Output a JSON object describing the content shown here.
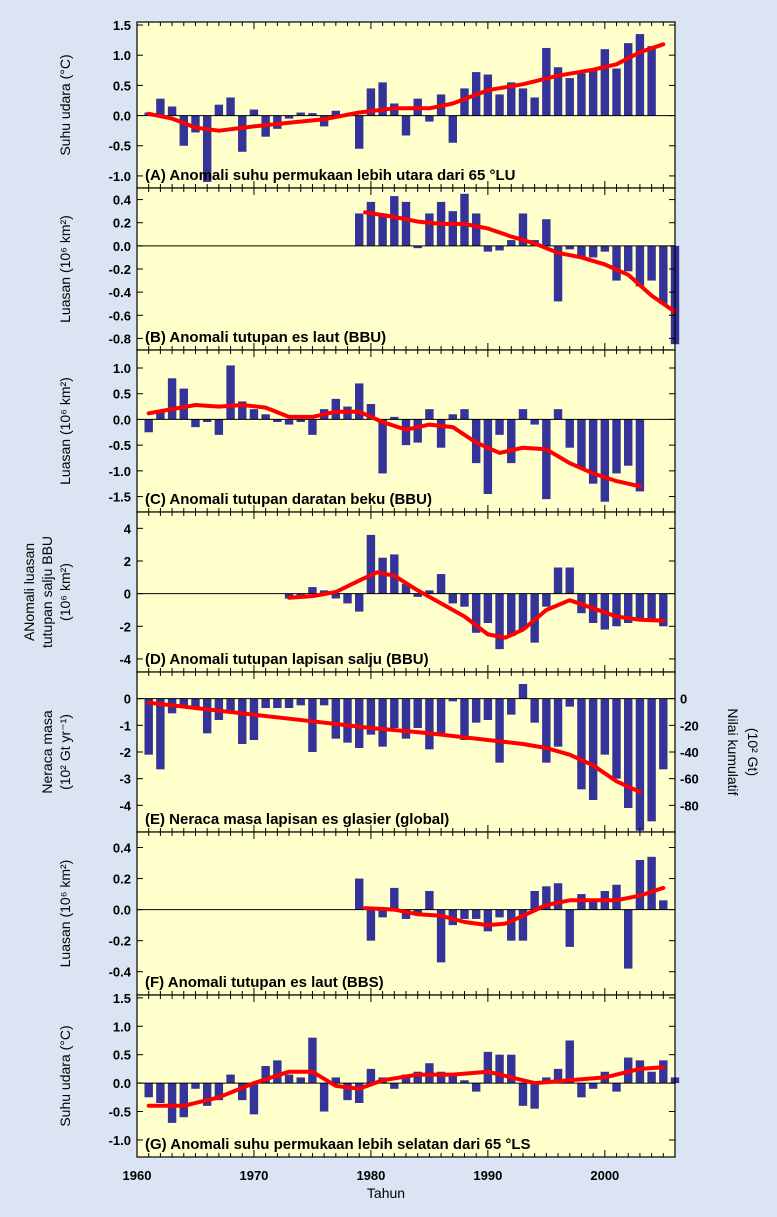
{
  "figure": {
    "xlabel": "Tahun",
    "xticks": [
      1960,
      1970,
      1980,
      1990,
      2000
    ],
    "xlim": [
      1960,
      2006
    ]
  },
  "chart_data": [
    {
      "type": "bar",
      "title": "(A) Anomali suhu permukaan lebih utara dari 65 °LU",
      "ylabel": [
        "Suhu udara (°C)"
      ],
      "ylim": [
        -1.2,
        1.55
      ],
      "yticks": [
        1.5,
        1.0,
        0.5,
        0.0,
        -0.5,
        -1.0
      ],
      "ytick_labels": [
        "1.5",
        "1.0",
        "0.5",
        "0.0",
        "-0.5",
        "-1.0"
      ],
      "x_start": 1961,
      "values": [
        0.05,
        0.28,
        0.15,
        -0.5,
        -0.28,
        -1.1,
        0.18,
        0.3,
        -0.6,
        0.1,
        -0.35,
        -0.22,
        -0.05,
        0.05,
        0.04,
        -0.18,
        0.08,
        0.02,
        -0.55,
        0.45,
        0.55,
        0.2,
        -0.33,
        0.28,
        -0.1,
        0.35,
        -0.45,
        0.45,
        0.72,
        0.68,
        0.35,
        0.55,
        0.45,
        0.3,
        1.12,
        0.8,
        0.62,
        0.7,
        0.75,
        1.1,
        0.78,
        1.2,
        1.35,
        1.15
      ],
      "smooth": [
        [
          1961,
          0.03
        ],
        [
          1963,
          -0.05
        ],
        [
          1965,
          -0.2
        ],
        [
          1967,
          -0.25
        ],
        [
          1970,
          -0.18
        ],
        [
          1973,
          -0.12
        ],
        [
          1976,
          -0.06
        ],
        [
          1979,
          0.05
        ],
        [
          1982,
          0.12
        ],
        [
          1985,
          0.12
        ],
        [
          1987,
          0.2
        ],
        [
          1990,
          0.42
        ],
        [
          1993,
          0.52
        ],
        [
          1996,
          0.66
        ],
        [
          1999,
          0.76
        ],
        [
          2001,
          0.85
        ],
        [
          2003,
          1.05
        ],
        [
          2005,
          1.18
        ]
      ],
      "series_color": "#333399",
      "smooth_color": "#ff0000"
    },
    {
      "type": "bar",
      "title": "(B) Anomali tutupan es laut (BBU)",
      "ylabel": [
        "Luasan (10⁶ km²)"
      ],
      "ylim": [
        -0.9,
        0.5
      ],
      "yticks": [
        0.4,
        0.2,
        0.0,
        -0.2,
        -0.4,
        -0.6,
        -0.8
      ],
      "ytick_labels": [
        "0.4",
        "0.2",
        "0.0",
        "-0.2",
        "-0.4",
        "-0.6",
        "-0.8"
      ],
      "x_start": 1979,
      "values": [
        0.28,
        0.38,
        0.28,
        0.43,
        0.38,
        -0.02,
        0.28,
        0.38,
        0.3,
        0.45,
        0.28,
        -0.05,
        -0.04,
        0.05,
        0.28,
        0.05,
        0.23,
        -0.48,
        -0.03,
        -0.1,
        -0.1,
        -0.05,
        -0.3,
        -0.22,
        -0.35,
        -0.3,
        -0.5,
        -0.85
      ],
      "smooth": [
        [
          1979.5,
          0.29
        ],
        [
          1982,
          0.25
        ],
        [
          1984,
          0.21
        ],
        [
          1986,
          0.19
        ],
        [
          1988,
          0.19
        ],
        [
          1990,
          0.15
        ],
        [
          1992,
          0.08
        ],
        [
          1994,
          0.02
        ],
        [
          1996,
          -0.06
        ],
        [
          1998,
          -0.1
        ],
        [
          2000,
          -0.16
        ],
        [
          2002,
          -0.25
        ],
        [
          2004,
          -0.43
        ],
        [
          2006,
          -0.57
        ]
      ],
      "series_color": "#333399",
      "smooth_color": "#ff0000"
    },
    {
      "type": "bar",
      "title": "(C) Anomali tutupan daratan beku (BBU)",
      "ylabel": [
        "Luasan (10⁶ km²)"
      ],
      "ylim": [
        -1.8,
        1.35
      ],
      "yticks": [
        1.0,
        0.5,
        0.0,
        -0.5,
        -1.0,
        -1.5
      ],
      "ytick_labels": [
        "1.0",
        "0.5",
        "0.0",
        "-0.5",
        "-1.0",
        "-1.5"
      ],
      "x_start": 1961,
      "values": [
        -0.25,
        0.15,
        0.8,
        0.6,
        -0.15,
        -0.05,
        -0.3,
        1.05,
        0.35,
        0.2,
        0.1,
        -0.05,
        -0.1,
        -0.05,
        -0.3,
        0.2,
        0.4,
        0.25,
        0.7,
        0.3,
        -1.05,
        0.05,
        -0.5,
        -0.45,
        0.2,
        -0.55,
        0.1,
        0.2,
        -0.85,
        -1.45,
        -0.3,
        -0.85,
        0.2,
        -0.1,
        -1.55,
        0.2,
        -0.55,
        -0.95,
        -1.25,
        -1.6,
        -1.05,
        -0.9,
        -1.4
      ],
      "smooth": [
        [
          1961,
          0.12
        ],
        [
          1963,
          0.2
        ],
        [
          1965,
          0.28
        ],
        [
          1967,
          0.25
        ],
        [
          1969,
          0.28
        ],
        [
          1971,
          0.23
        ],
        [
          1973,
          0.05
        ],
        [
          1975,
          0.05
        ],
        [
          1977,
          0.15
        ],
        [
          1979,
          0.15
        ],
        [
          1981,
          -0.05
        ],
        [
          1983,
          -0.2
        ],
        [
          1985,
          -0.1
        ],
        [
          1987,
          -0.15
        ],
        [
          1989,
          -0.45
        ],
        [
          1991,
          -0.65
        ],
        [
          1993,
          -0.55
        ],
        [
          1995,
          -0.58
        ],
        [
          1997,
          -0.85
        ],
        [
          1999,
          -1.05
        ],
        [
          2001,
          -1.2
        ],
        [
          2003,
          -1.3
        ]
      ],
      "series_color": "#333399",
      "smooth_color": "#ff0000"
    },
    {
      "type": "bar",
      "title": "(D) Anomali tutupan lapisan salju (BBU)",
      "ylabel": [
        "ANomali luasan",
        "tutupan salju BBU",
        "(10⁶ km²)"
      ],
      "ylim": [
        -4.8,
        5.0
      ],
      "yticks": [
        4,
        2,
        0,
        -2,
        -4
      ],
      "ytick_labels": [
        "4",
        "2",
        "0",
        "-2",
        "-4"
      ],
      "x_start": 1973,
      "values": [
        -0.3,
        -0.2,
        0.4,
        0.2,
        -0.3,
        -0.6,
        -1.1,
        3.6,
        2.2,
        2.4,
        0.6,
        -0.2,
        0.2,
        1.2,
        -0.6,
        -0.8,
        -2.4,
        -1.8,
        -3.4,
        -2.6,
        -2.2,
        -3.0,
        -0.8,
        1.6,
        1.6,
        -1.2,
        -1.8,
        -2.2,
        -2.0,
        -1.8,
        -1.6,
        -1.6,
        -2.0
      ],
      "smooth": [
        [
          1973,
          -0.25
        ],
        [
          1975,
          -0.15
        ],
        [
          1977,
          0.1
        ],
        [
          1979,
          0.8
        ],
        [
          1980.5,
          1.3
        ],
        [
          1982,
          1.1
        ],
        [
          1984,
          0.2
        ],
        [
          1986,
          -0.6
        ],
        [
          1988,
          -1.4
        ],
        [
          1990,
          -2.5
        ],
        [
          1991.5,
          -2.7
        ],
        [
          1993,
          -2.2
        ],
        [
          1995,
          -1.0
        ],
        [
          1997,
          -0.4
        ],
        [
          1999,
          -0.9
        ],
        [
          2001,
          -1.4
        ],
        [
          2003,
          -1.6
        ],
        [
          2005,
          -1.65
        ]
      ],
      "series_color": "#333399",
      "smooth_color": "#ff0000"
    },
    {
      "type": "bar",
      "title": "(E) Neraca masa lapisan es glasier (global)",
      "ylabel": [
        "Neraca masa",
        "(10² Gt yr⁻¹)"
      ],
      "ylabel_right": [
        "Nilai kumulatif",
        "(10² Gt)"
      ],
      "ylim": [
        -5.0,
        1.0
      ],
      "yticks": [
        0,
        -1,
        -2,
        -3,
        -4
      ],
      "ytick_labels": [
        "0",
        "-1",
        "-2",
        "-3",
        "-4"
      ],
      "y2ticks": [
        0,
        -20,
        -40,
        -60,
        -80
      ],
      "y2tick_labels": [
        "0",
        "-20",
        "-40",
        "-60",
        "-80"
      ],
      "x_start": 1961,
      "values": [
        -2.1,
        -2.65,
        -0.55,
        -0.3,
        -0.4,
        -1.3,
        -0.8,
        -0.45,
        -1.7,
        -1.55,
        -0.35,
        -0.35,
        -0.35,
        -0.25,
        -2.0,
        -0.25,
        -1.5,
        -1.65,
        -1.85,
        -1.35,
        -1.8,
        -1.1,
        -1.5,
        -1.1,
        -1.9,
        -1.3,
        -0.1,
        -1.55,
        -0.9,
        -0.8,
        -2.4,
        -0.6,
        0.55,
        -0.9,
        -2.4,
        -1.8,
        -0.3,
        -3.4,
        -3.8,
        -2.1,
        -3.0,
        -4.1,
        -4.95,
        -4.6,
        -2.65
      ],
      "smooth": [
        [
          1961,
          -0.15
        ],
        [
          1965,
          -0.35
        ],
        [
          1970,
          -0.6
        ],
        [
          1975,
          -0.85
        ],
        [
          1980,
          -1.1
        ],
        [
          1985,
          -1.3
        ],
        [
          1990,
          -1.55
        ],
        [
          1993,
          -1.7
        ],
        [
          1995,
          -1.85
        ],
        [
          1997,
          -2.1
        ],
        [
          1999,
          -2.5
        ],
        [
          2001,
          -3.1
        ],
        [
          2003,
          -3.5
        ]
      ],
      "series_color": "#333399",
      "smooth_color": "#ff0000"
    },
    {
      "type": "bar",
      "title": "(F) Anomali tutupan es laut (BBS)",
      "ylabel": [
        "Luasan (10⁶ km²)"
      ],
      "ylim": [
        -0.55,
        0.5
      ],
      "yticks": [
        0.4,
        0.2,
        0.0,
        -0.2,
        -0.4
      ],
      "ytick_labels": [
        "0.4",
        "0.2",
        "0.0",
        "-0.2",
        "-0.4"
      ],
      "x_start": 1979,
      "values": [
        0.2,
        -0.2,
        -0.05,
        0.14,
        -0.06,
        -0.03,
        0.12,
        -0.34,
        -0.1,
        -0.06,
        -0.06,
        -0.14,
        -0.05,
        -0.2,
        -0.2,
        0.12,
        0.15,
        0.17,
        -0.24,
        0.1,
        0.06,
        0.12,
        0.16,
        -0.38,
        0.32,
        0.34,
        0.06
      ],
      "smooth": [
        [
          1979.5,
          0.01
        ],
        [
          1982,
          0.0
        ],
        [
          1984,
          -0.03
        ],
        [
          1986,
          -0.04
        ],
        [
          1988,
          -0.08
        ],
        [
          1990,
          -0.1
        ],
        [
          1991.5,
          -0.09
        ],
        [
          1993,
          -0.04
        ],
        [
          1995,
          0.03
        ],
        [
          1997,
          0.06
        ],
        [
          1999,
          0.06
        ],
        [
          2001,
          0.06
        ],
        [
          2003,
          0.09
        ],
        [
          2005,
          0.14
        ]
      ],
      "series_color": "#333399",
      "smooth_color": "#ff0000"
    },
    {
      "type": "bar",
      "title": "(G) Anomali suhu permukaan lebih selatan dari 65 °LS",
      "ylabel": [
        "Suhu udara (°C)"
      ],
      "ylim": [
        -1.3,
        1.55
      ],
      "yticks": [
        1.5,
        1.0,
        0.5,
        0.0,
        -0.5,
        -1.0
      ],
      "ytick_labels": [
        "1.5",
        "1.0",
        "0.5",
        "0.0",
        "-0.5",
        "-1.0"
      ],
      "x_start": 1961,
      "values": [
        -0.25,
        -0.35,
        -0.7,
        -0.6,
        -0.1,
        -0.4,
        -0.3,
        0.15,
        -0.3,
        -0.55,
        0.3,
        0.4,
        0.15,
        0.1,
        0.8,
        -0.5,
        0.1,
        -0.3,
        -0.35,
        0.25,
        0.1,
        -0.1,
        0.15,
        0.2,
        0.35,
        0.2,
        0.15,
        0.05,
        -0.15,
        0.55,
        0.5,
        0.5,
        -0.4,
        -0.45,
        0.1,
        0.25,
        0.75,
        -0.25,
        -0.1,
        0.2,
        -0.15,
        0.45,
        0.4,
        0.2,
        0.4,
        0.1
      ],
      "smooth": [
        [
          1961,
          -0.4
        ],
        [
          1964,
          -0.4
        ],
        [
          1967,
          -0.25
        ],
        [
          1970,
          0.0
        ],
        [
          1973,
          0.2
        ],
        [
          1975,
          0.2
        ],
        [
          1977,
          -0.05
        ],
        [
          1979,
          -0.1
        ],
        [
          1981,
          0.05
        ],
        [
          1984,
          0.15
        ],
        [
          1987,
          0.15
        ],
        [
          1990,
          0.2
        ],
        [
          1992,
          0.1
        ],
        [
          1994,
          0.0
        ],
        [
          1997,
          0.05
        ],
        [
          2000,
          0.1
        ],
        [
          2003,
          0.25
        ],
        [
          2005,
          0.28
        ]
      ],
      "series_color": "#333399",
      "smooth_color": "#ff0000"
    }
  ]
}
